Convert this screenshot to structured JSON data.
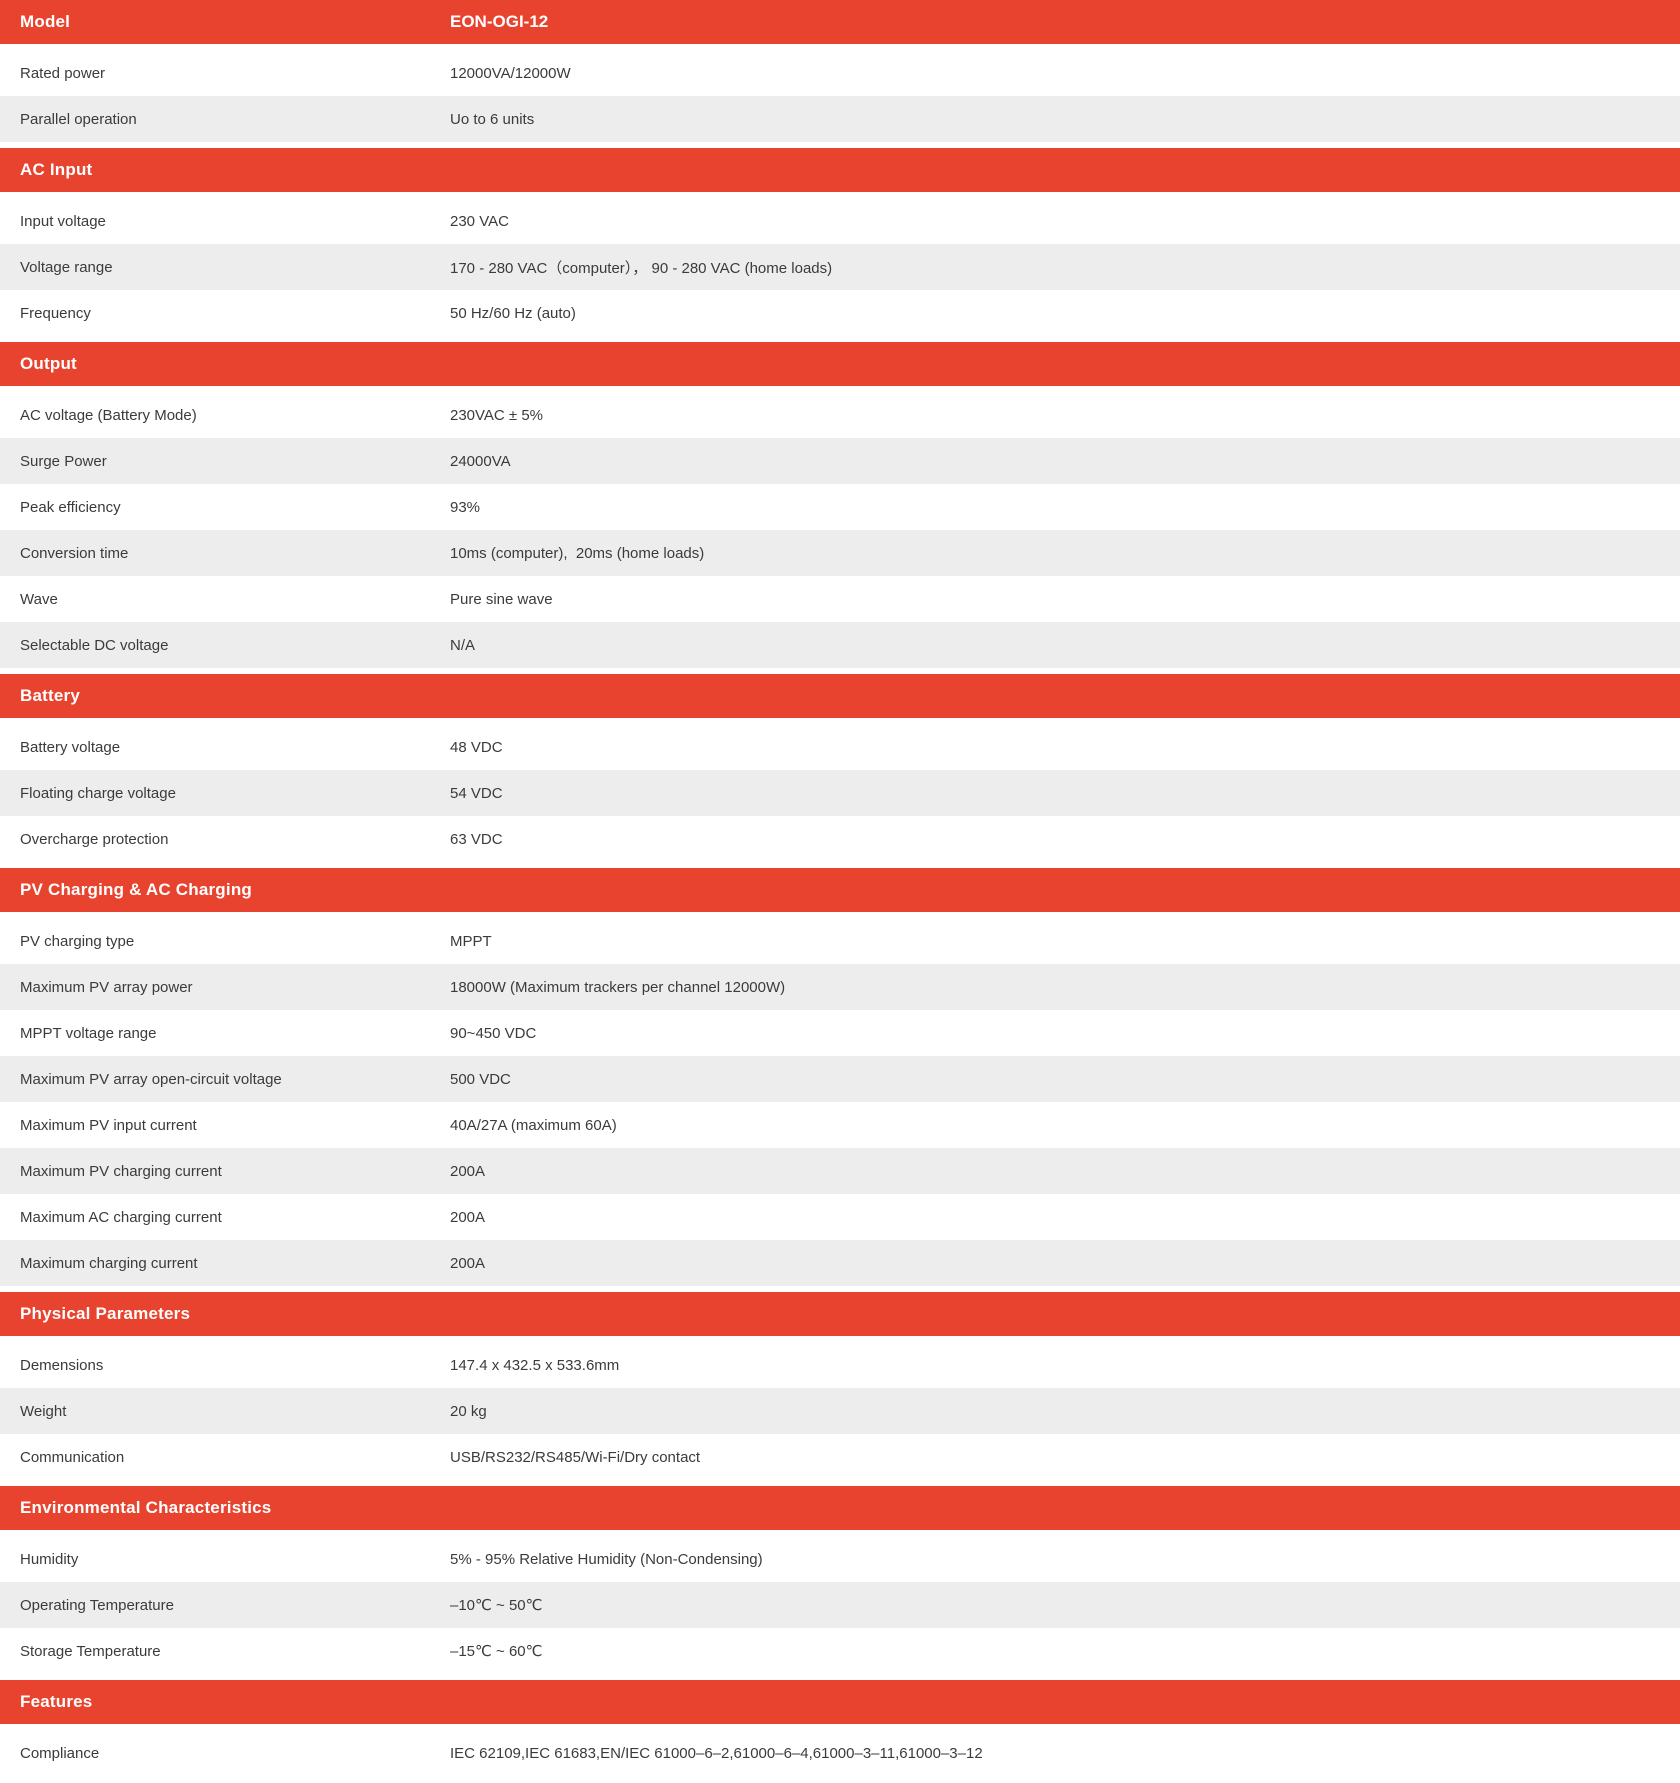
{
  "colors": {
    "accent_red": "#E8432E",
    "alt_row_gray": "#EDEDED",
    "text": "#3B3B3B",
    "header_text": "#FFFFFF"
  },
  "table": {
    "sections": [
      {
        "title": "Model",
        "title_value": "EON-OGI-12",
        "rows": [
          {
            "label": "Rated power",
            "value": "12000VA/12000W"
          },
          {
            "label": "Parallel operation",
            "value": "Uo to 6 units"
          }
        ]
      },
      {
        "title": "AC Input",
        "title_value": "",
        "rows": [
          {
            "label": "Input voltage",
            "value": "230 VAC"
          },
          {
            "label": "Voltage range",
            "value": "170 - 280 VAC（computer）， 90 - 280 VAC (home loads)"
          },
          {
            "label": "Frequency",
            "value": "50 Hz/60 Hz (auto)"
          }
        ]
      },
      {
        "title": "Output",
        "title_value": "",
        "rows": [
          {
            "label": "AC voltage (Battery Mode)",
            "value": "230VAC ± 5%"
          },
          {
            "label": "Surge Power",
            "value": "24000VA"
          },
          {
            "label": "Peak efficiency",
            "value": "93%"
          },
          {
            "label": "Conversion time",
            "value": "10ms (computer),  20ms (home loads)"
          },
          {
            "label": "Wave",
            "value": "Pure sine wave"
          },
          {
            "label": "Selectable DC voltage",
            "value": "N/A"
          }
        ]
      },
      {
        "title": "Battery",
        "title_value": "",
        "rows": [
          {
            "label": "Battery voltage",
            "value": "48 VDC"
          },
          {
            "label": "Floating charge voltage",
            "value": "54 VDC"
          },
          {
            "label": "Overcharge protection",
            "value": "63 VDC"
          }
        ]
      },
      {
        "title": "PV Charging & AC Charging",
        "title_value": "",
        "rows": [
          {
            "label": "PV charging type",
            "value": "MPPT"
          },
          {
            "label": "Maximum PV array power",
            "value": "18000W (Maximum trackers per channel 12000W)"
          },
          {
            "label": "MPPT voltage range",
            "value": "90~450 VDC"
          },
          {
            "label": "Maximum PV array open-circuit voltage",
            "value": "500 VDC"
          },
          {
            "label": "Maximum PV input current",
            "value": "40A/27A (maximum 60A)"
          },
          {
            "label": "Maximum PV charging current",
            "value": "200A"
          },
          {
            "label": "Maximum AC charging current",
            "value": "200A"
          },
          {
            "label": "Maximum charging current",
            "value": "200A"
          }
        ]
      },
      {
        "title": "Physical Parameters",
        "title_value": "",
        "rows": [
          {
            "label": "Demensions",
            "value": "147.4 x 432.5 x 533.6mm"
          },
          {
            "label": "Weight",
            "value": "20 kg"
          },
          {
            "label": "Communication",
            "value": "USB/RS232/RS485/Wi-Fi/Dry contact"
          }
        ]
      },
      {
        "title": "Environmental Characteristics",
        "title_value": "",
        "rows": [
          {
            "label": "Humidity",
            "value": "5% - 95% Relative Humidity (Non-Condensing)"
          },
          {
            "label": "Operating Temperature",
            "value": "–10℃ ~ 50℃"
          },
          {
            "label": "Storage Temperature",
            "value": "–15℃ ~ 60℃"
          }
        ]
      },
      {
        "title": "Features",
        "title_value": "",
        "rows": [
          {
            "label": "Compliance",
            "value": "IEC 62109,IEC 61683,EN/IEC 61000–6–2,61000–6–4,61000–3–11,61000–3–12"
          }
        ]
      }
    ]
  }
}
